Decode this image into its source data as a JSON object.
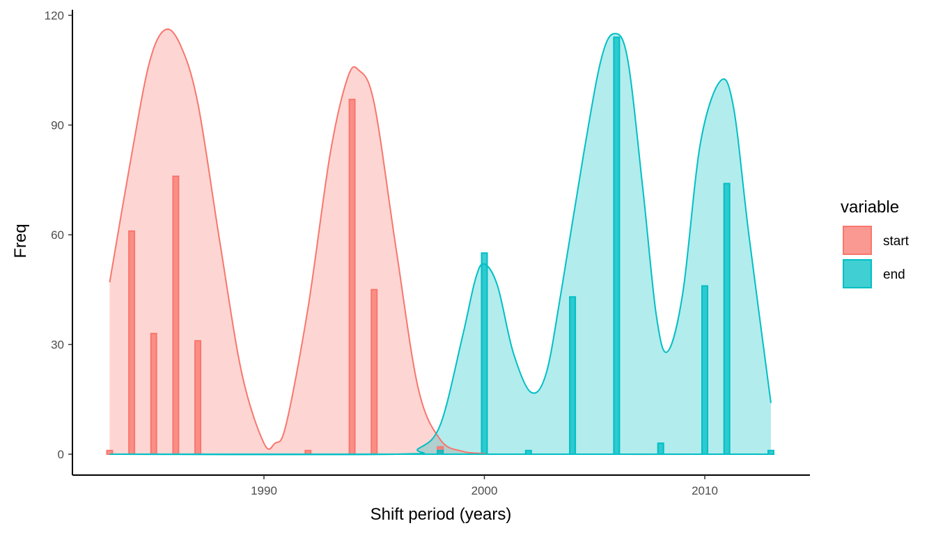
{
  "chart_data": {
    "type": "bar",
    "xlabel": "Shift period (years)",
    "ylabel": "Freq",
    "xlim": [
      1982.6,
      2014.7
    ],
    "ylim": [
      0,
      120
    ],
    "x_ticks": [
      1990,
      2000,
      2010
    ],
    "y_ticks": [
      0,
      30,
      60,
      90,
      120
    ],
    "x_tick_labels": [
      "1990",
      "2000",
      "2010"
    ],
    "y_tick_labels": [
      "0",
      "30",
      "60",
      "90",
      "120"
    ],
    "grid": false,
    "legend": {
      "title": "variable",
      "position": "right"
    },
    "series": [
      {
        "name": "start",
        "color": "#F8766D",
        "bars": [
          {
            "x": 1983,
            "y": 1
          },
          {
            "x": 1984,
            "y": 61
          },
          {
            "x": 1985,
            "y": 33
          },
          {
            "x": 1986,
            "y": 76
          },
          {
            "x": 1987,
            "y": 31
          },
          {
            "x": 1992,
            "y": 1
          },
          {
            "x": 1994,
            "y": 97
          },
          {
            "x": 1995,
            "y": 45
          },
          {
            "x": 1998,
            "y": 2
          }
        ],
        "density": [
          [
            1983.0,
            47
          ],
          [
            1984.0,
            82
          ],
          [
            1984.8,
            107
          ],
          [
            1985.5,
            116
          ],
          [
            1986.2,
            112
          ],
          [
            1987.0,
            96
          ],
          [
            1988.0,
            58
          ],
          [
            1989.0,
            22
          ],
          [
            1990.0,
            3
          ],
          [
            1990.5,
            3
          ],
          [
            1991.0,
            8
          ],
          [
            1992.0,
            40
          ],
          [
            1993.0,
            82
          ],
          [
            1993.8,
            103
          ],
          [
            1994.3,
            105
          ],
          [
            1995.0,
            96
          ],
          [
            1996.0,
            56
          ],
          [
            1997.0,
            18
          ],
          [
            1998.0,
            4
          ],
          [
            1999.0,
            0.8
          ],
          [
            2000.0,
            0.2
          ],
          [
            2001.0,
            0
          ],
          [
            2013.0,
            0
          ]
        ]
      },
      {
        "name": "end",
        "color": "#00BFC4",
        "bars": [
          {
            "x": 1998,
            "y": 1
          },
          {
            "x": 2000,
            "y": 55
          },
          {
            "x": 2002,
            "y": 1
          },
          {
            "x": 2004,
            "y": 43
          },
          {
            "x": 2006,
            "y": 114
          },
          {
            "x": 2008,
            "y": 3
          },
          {
            "x": 2010,
            "y": 46
          },
          {
            "x": 2011,
            "y": 74
          },
          {
            "x": 2013,
            "y": 1
          }
        ],
        "density": [
          [
            1983.0,
            0
          ],
          [
            1996.0,
            0
          ],
          [
            1997.0,
            1.5
          ],
          [
            1998.0,
            8
          ],
          [
            1999.0,
            32
          ],
          [
            1999.6,
            48
          ],
          [
            2000.0,
            52
          ],
          [
            2000.6,
            46
          ],
          [
            2001.3,
            28
          ],
          [
            2002.1,
            17
          ],
          [
            2002.8,
            22
          ],
          [
            2003.5,
            45
          ],
          [
            2004.5,
            82
          ],
          [
            2005.3,
            108
          ],
          [
            2005.9,
            115
          ],
          [
            2006.5,
            108
          ],
          [
            2007.2,
            72
          ],
          [
            2007.8,
            38
          ],
          [
            2008.3,
            28
          ],
          [
            2009.0,
            44
          ],
          [
            2009.8,
            85
          ],
          [
            2010.7,
            102
          ],
          [
            2011.3,
            95
          ],
          [
            2012.0,
            60
          ],
          [
            2013.0,
            14
          ]
        ]
      }
    ]
  }
}
